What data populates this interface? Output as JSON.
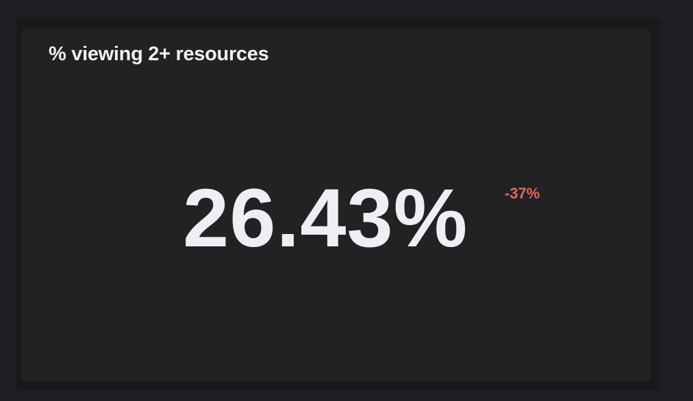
{
  "card": {
    "title": "% viewing 2+ resources",
    "value": "26.43%",
    "delta": "-37%"
  },
  "colors": {
    "background": "#1e1f23",
    "card": "#222225",
    "value_text": "#efeef3",
    "delta_negative": "#e0685d"
  }
}
